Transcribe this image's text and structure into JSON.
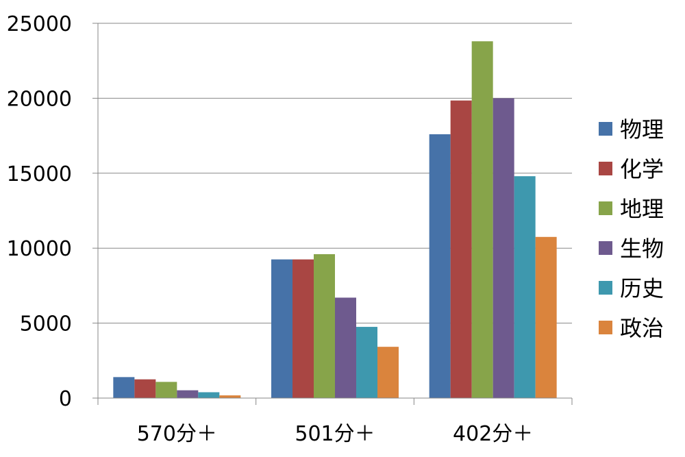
{
  "chart_data": {
    "type": "bar",
    "categories": [
      "570分＋",
      "501分＋",
      "402分＋"
    ],
    "series": [
      {
        "name": "物理",
        "color": "#4672A8",
        "values": [
          1400,
          9250,
          17600
        ]
      },
      {
        "name": "化学",
        "color": "#A94643",
        "values": [
          1250,
          9250,
          19850
        ]
      },
      {
        "name": "地理",
        "color": "#87A44A",
        "values": [
          1080,
          9600,
          23800
        ]
      },
      {
        "name": "生物",
        "color": "#6E5A8E",
        "values": [
          520,
          6700,
          20000
        ]
      },
      {
        "name": "历史",
        "color": "#3E98AE",
        "values": [
          390,
          4750,
          14800
        ]
      },
      {
        "name": "政治",
        "color": "#DA843D",
        "values": [
          180,
          3420,
          10750
        ]
      }
    ],
    "yticks": [
      "0",
      "5000",
      "10000",
      "15000",
      "20000",
      "25000"
    ],
    "ylim": [
      0,
      25000
    ],
    "grid": true,
    "legend_position": "right"
  }
}
